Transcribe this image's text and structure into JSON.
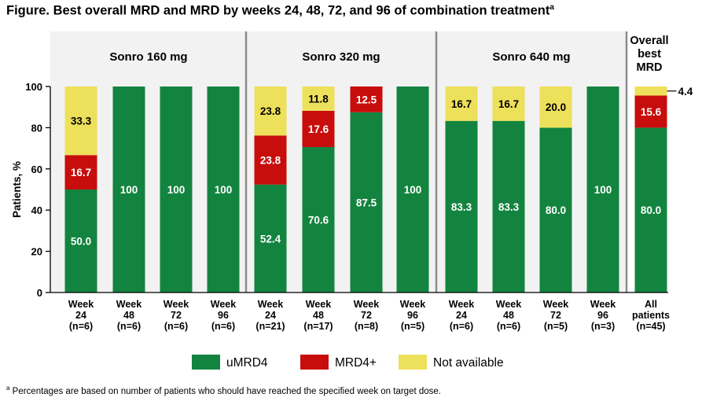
{
  "title": "Figure. Best overall MRD and MRD by weeks 24, 48, 72, and 96 of combination treatment",
  "title_sup": "a",
  "footnote_sup": "a",
  "footnote": "Percentages are based on number of patients who should have reached the specified week on target dose.",
  "colors": {
    "umrd4": "#13843f",
    "mrd4plus": "#c80d0d",
    "na": "#ede05a",
    "panel_bg": "#f2f2f2",
    "divider": "#8c8c8c"
  },
  "chart_data": {
    "type": "bar",
    "stacked": true,
    "ylabel": "Patients, %",
    "ylim": [
      0,
      100
    ],
    "yticks": [
      0,
      20,
      40,
      60,
      80,
      100
    ],
    "groups": [
      {
        "label": "Sonro 160 mg",
        "bar_indices": [
          0,
          1,
          2,
          3
        ]
      },
      {
        "label": "Sonro 320 mg",
        "bar_indices": [
          4,
          5,
          6,
          7
        ]
      },
      {
        "label": "Sonro 640 mg",
        "bar_indices": [
          8,
          9,
          10,
          11
        ]
      },
      {
        "label": "Overall best MRD",
        "lines": [
          "Overall",
          "best",
          "MRD"
        ],
        "bar_indices": [
          12
        ]
      }
    ],
    "categories": [
      [
        "Week",
        "24",
        "(n=6)"
      ],
      [
        "Week",
        "48",
        "(n=6)"
      ],
      [
        "Week",
        "72",
        "(n=6)"
      ],
      [
        "Week",
        "96",
        "(n=6)"
      ],
      [
        "Week",
        "24",
        "(n=21)"
      ],
      [
        "Week",
        "48",
        "(n=17)"
      ],
      [
        "Week",
        "72",
        "(n=8)"
      ],
      [
        "Week",
        "96",
        "(n=5)"
      ],
      [
        "Week",
        "24",
        "(n=6)"
      ],
      [
        "Week",
        "48",
        "(n=6)"
      ],
      [
        "Week",
        "72",
        "(n=5)"
      ],
      [
        "Week",
        "96",
        "(n=3)"
      ],
      [
        "All",
        "patients",
        "(n=45)"
      ]
    ],
    "series": [
      {
        "name": "uMRD4",
        "color_key": "umrd4",
        "values": [
          50.0,
          100,
          100,
          100,
          52.4,
          70.6,
          87.5,
          100,
          83.3,
          83.3,
          80.0,
          100,
          80.0
        ],
        "labels": [
          "50.0",
          "100",
          "100",
          "100",
          "52.4",
          "70.6",
          "87.5",
          "100",
          "83.3",
          "83.3",
          "80.0",
          "100",
          "80.0"
        ]
      },
      {
        "name": "MRD4+",
        "color_key": "mrd4plus",
        "values": [
          16.7,
          0,
          0,
          0,
          23.8,
          17.6,
          12.5,
          0,
          0,
          0,
          0,
          0,
          15.6
        ],
        "labels": [
          "16.7",
          "",
          "",
          "",
          "23.8",
          "17.6",
          "12.5",
          "",
          "",
          "",
          "",
          "",
          "15.6"
        ]
      },
      {
        "name": "Not available",
        "color_key": "na",
        "values": [
          33.3,
          0,
          0,
          0,
          23.8,
          11.8,
          0,
          0,
          16.7,
          16.7,
          20.0,
          0,
          4.4
        ],
        "labels": [
          "33.3",
          "",
          "",
          "",
          "23.8",
          "11.8",
          "",
          "",
          "16.7",
          "16.7",
          "20.0",
          "",
          ""
        ]
      }
    ],
    "callouts": [
      {
        "bar_index": 12,
        "series": "Not available",
        "text": "4.4"
      }
    ],
    "legend": {
      "position": "bottom",
      "items": [
        "uMRD4",
        "MRD4+",
        "Not available"
      ]
    }
  }
}
